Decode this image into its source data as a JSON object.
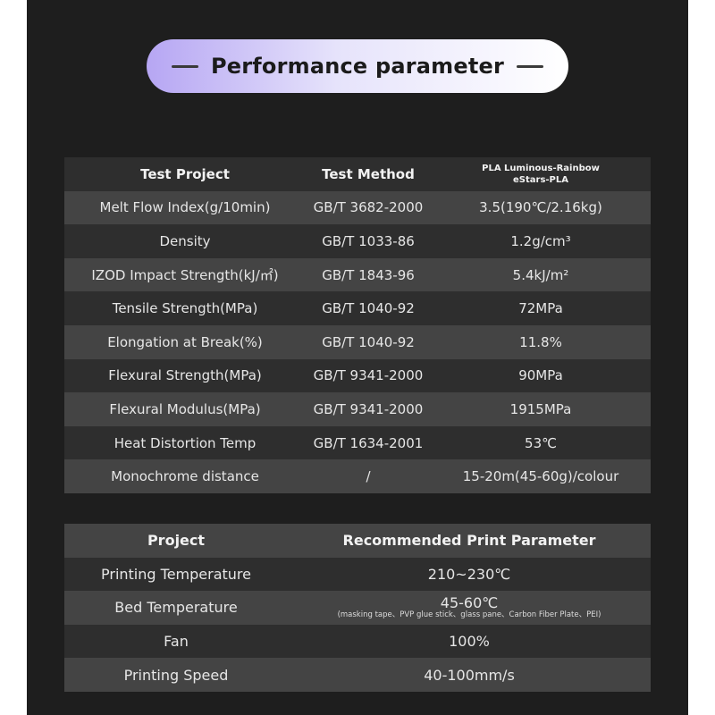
{
  "title": "Performance parameter",
  "performance": {
    "headers": [
      "Test Project",
      "Test Method",
      "PLA Luminous-Rainbow",
      "eStars-PLA"
    ],
    "rows": [
      [
        "Melt Flow Index(g/10min)",
        "GB/T 3682-2000",
        "3.5(190℃/2.16kg)"
      ],
      [
        "Density",
        "GB/T 1033-86",
        "1.2g/cm³"
      ],
      [
        "IZOD Impact Strength(kJ/㎡)",
        "GB/T 1843-96",
        "5.4kJ/m²"
      ],
      [
        "Tensile Strength(MPa)",
        "GB/T 1040-92",
        "72MPa"
      ],
      [
        "Elongation at Break(%)",
        "GB/T 1040-92",
        "11.8%"
      ],
      [
        "Flexural Strength(MPa)",
        "GB/T 9341-2000",
        "90MPa"
      ],
      [
        "Flexural Modulus(MPa)",
        "GB/T 9341-2000",
        "1915MPa"
      ],
      [
        "Heat Distortion Temp",
        "GB/T 1634-2001",
        "53℃"
      ],
      [
        "Monochrome distance",
        "/",
        "15-20m(45-60g)/colour"
      ]
    ]
  },
  "print": {
    "headers": [
      "Project",
      "Recommended Print Parameter"
    ],
    "rows": [
      [
        "Printing Temperature",
        "210~230℃",
        ""
      ],
      [
        "Bed Temperature",
        "45-60℃",
        "(masking tape、PVP glue stick、glass pane、Carbon Fiber Plate、PEI)"
      ],
      [
        "Fan",
        "100%",
        ""
      ],
      [
        "Printing Speed",
        "40-100mm/s",
        ""
      ]
    ]
  },
  "colors": {
    "background": "#1e1e1e",
    "row_dark": "#2e2e2e",
    "row_light": "#444444",
    "text": "#e6e6e6",
    "pill_start": "#b6a6f3"
  }
}
